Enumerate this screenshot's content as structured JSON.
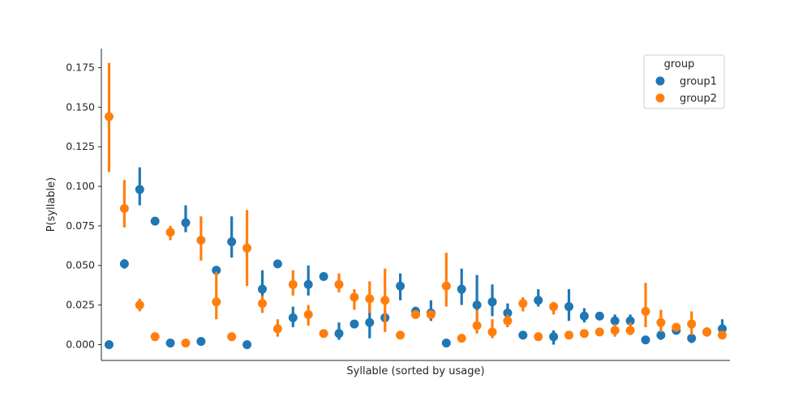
{
  "chart_data": {
    "type": "scatter",
    "xlabel": "Syllable (sorted by usage)",
    "ylabel": "P(syllable)",
    "ylim": [
      -0.01,
      0.187
    ],
    "yticks": [
      "0.000",
      "0.025",
      "0.050",
      "0.075",
      "0.100",
      "0.125",
      "0.150",
      "0.175"
    ],
    "x_tick_labels_shown": false,
    "legend": {
      "title": "group",
      "position": "top-right"
    },
    "grid": false,
    "n_syllables": 41,
    "series": [
      {
        "name": "group1",
        "color": "#1f77b4",
        "values": [
          0.0,
          0.051,
          0.098,
          0.078,
          0.001,
          0.077,
          0.002,
          0.047,
          0.065,
          0.0,
          0.035,
          0.051,
          0.017,
          0.038,
          0.043,
          0.007,
          0.013,
          0.014,
          0.017,
          0.037,
          0.021,
          0.02,
          0.001,
          0.035,
          0.025,
          0.027,
          0.02,
          0.006,
          0.028,
          0.005,
          0.024,
          0.018,
          0.018,
          0.015,
          0.015,
          0.003,
          0.006,
          0.009,
          0.004,
          0.008,
          0.01
        ],
        "ci_low": [
          0.0,
          0.048,
          0.088,
          0.077,
          0.001,
          0.071,
          0.001,
          0.045,
          0.055,
          0.0,
          0.03,
          0.05,
          0.011,
          0.031,
          0.042,
          0.003,
          0.012,
          0.004,
          0.013,
          0.028,
          0.018,
          0.015,
          0.0,
          0.025,
          0.015,
          0.018,
          0.011,
          0.005,
          0.024,
          0.0,
          0.015,
          0.014,
          0.017,
          0.012,
          0.01,
          0.002,
          0.003,
          0.007,
          0.001,
          0.006,
          0.006
        ],
        "ci_high": [
          0.0,
          0.054,
          0.112,
          0.079,
          0.002,
          0.088,
          0.003,
          0.048,
          0.081,
          0.001,
          0.047,
          0.052,
          0.024,
          0.05,
          0.044,
          0.014,
          0.014,
          0.026,
          0.021,
          0.045,
          0.024,
          0.028,
          0.002,
          0.048,
          0.044,
          0.038,
          0.026,
          0.007,
          0.035,
          0.009,
          0.035,
          0.023,
          0.019,
          0.019,
          0.019,
          0.004,
          0.01,
          0.011,
          0.007,
          0.01,
          0.016
        ]
      },
      {
        "name": "group2",
        "color": "#ff7f0e",
        "values": [
          0.144,
          0.086,
          0.025,
          0.005,
          0.071,
          0.001,
          0.066,
          0.027,
          0.005,
          0.061,
          0.026,
          0.01,
          0.038,
          0.019,
          0.007,
          0.038,
          0.03,
          0.029,
          0.028,
          0.006,
          0.019,
          0.019,
          0.037,
          0.004,
          0.012,
          0.008,
          0.015,
          0.026,
          0.005,
          0.024,
          0.006,
          0.007,
          0.008,
          0.009,
          0.009,
          0.021,
          0.014,
          0.011,
          0.013,
          0.008,
          0.006
        ],
        "ci_low": [
          0.109,
          0.074,
          0.021,
          0.004,
          0.066,
          0.0,
          0.053,
          0.016,
          0.004,
          0.037,
          0.02,
          0.005,
          0.031,
          0.012,
          0.006,
          0.033,
          0.022,
          0.02,
          0.008,
          0.005,
          0.017,
          0.017,
          0.024,
          0.003,
          0.007,
          0.004,
          0.011,
          0.021,
          0.004,
          0.019,
          0.005,
          0.006,
          0.007,
          0.005,
          0.006,
          0.011,
          0.008,
          0.009,
          0.006,
          0.005,
          0.005
        ],
        "ci_high": [
          0.178,
          0.104,
          0.029,
          0.007,
          0.075,
          0.002,
          0.081,
          0.046,
          0.007,
          0.085,
          0.031,
          0.016,
          0.047,
          0.025,
          0.009,
          0.045,
          0.035,
          0.04,
          0.048,
          0.008,
          0.021,
          0.021,
          0.058,
          0.005,
          0.022,
          0.016,
          0.019,
          0.03,
          0.006,
          0.027,
          0.008,
          0.009,
          0.009,
          0.013,
          0.014,
          0.039,
          0.022,
          0.013,
          0.021,
          0.011,
          0.008
        ]
      }
    ]
  }
}
